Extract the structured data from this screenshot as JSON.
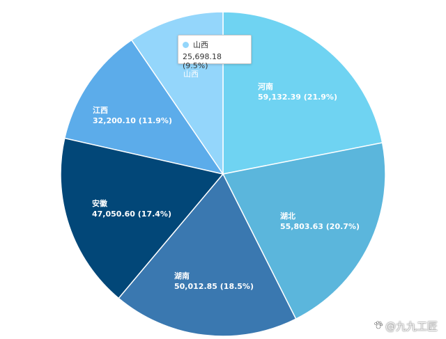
{
  "chart_data": {
    "type": "pie",
    "slices": [
      {
        "name": "河南",
        "value": 59132.39,
        "label": "59,132.39 (21.9%)",
        "color": "#6fd3f2"
      },
      {
        "name": "湖北",
        "value": 55803.63,
        "label": "55,803.63 (20.7%)",
        "color": "#5bb6dc"
      },
      {
        "name": "湖南",
        "value": 50012.85,
        "label": "50,012.85 (18.5%)",
        "color": "#3a78b0"
      },
      {
        "name": "安徽",
        "value": 47050.6,
        "label": "47,050.60 (17.4%)",
        "color": "#024778"
      },
      {
        "name": "江西",
        "value": 32200.1,
        "label": "32,200.10 (11.9%)",
        "color": "#5cacea"
      },
      {
        "name": "山西",
        "value": 25698.18,
        "label": "25,698.18 (9.5%)",
        "color": "#94d6fb"
      }
    ]
  },
  "tooltip": {
    "name": "山西",
    "value": "25,698.18 (9.5%)",
    "color": "#94d6fb"
  },
  "watermark": {
    "text": "@九九工匠",
    "icon": "paw-icon"
  }
}
